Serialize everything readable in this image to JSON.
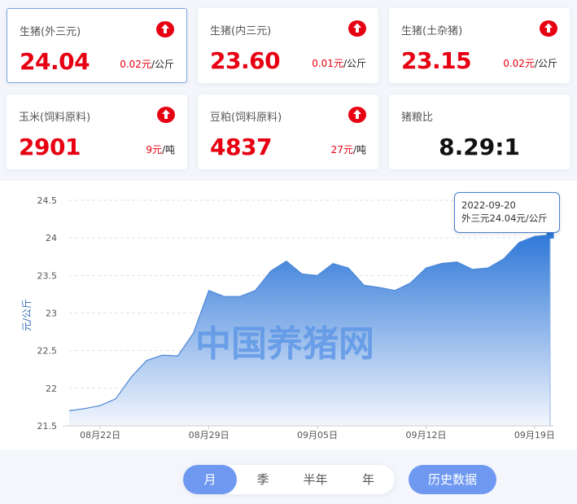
{
  "cards": [
    {
      "name": "生猪(外三元)",
      "price": "24.04",
      "change": "0.02元",
      "unit": "/公斤",
      "trend": "up",
      "active": true
    },
    {
      "name": "生猪(内三元)",
      "price": "23.60",
      "change": "0.01元",
      "unit": "/公斤",
      "trend": "up"
    },
    {
      "name": "生猪(土杂猪)",
      "price": "23.15",
      "change": "0.02元",
      "unit": "/公斤",
      "trend": "up"
    },
    {
      "name": "玉米(饲料原料)",
      "price": "2901",
      "change": "9元",
      "unit": "/吨",
      "trend": "up"
    },
    {
      "name": "豆粕(饲料原料)",
      "price": "4837",
      "change": "27元",
      "unit": "/吨",
      "trend": "up"
    }
  ],
  "ratio_card": {
    "name": "猪粮比",
    "value": "8.29:1"
  },
  "colors": {
    "accent": "#e60012",
    "series": "#3b7fd9",
    "button": "#6f99f1"
  },
  "chart_data": {
    "type": "area",
    "ylabel": "元/公斤",
    "ylim": [
      21.5,
      24.5
    ],
    "yticks": [
      "21.5",
      "22",
      "22.5",
      "23",
      "23.5",
      "24",
      "24.5"
    ],
    "xticks": [
      {
        "date": "2022-08-22",
        "label": "08月22日"
      },
      {
        "date": "2022-08-29",
        "label": "08月29日"
      },
      {
        "date": "2022-09-05",
        "label": "09月05日"
      },
      {
        "date": "2022-09-12",
        "label": "09月12日"
      },
      {
        "date": "2022-09-19",
        "label": "09月19日"
      }
    ],
    "x_start": "2022-08-20",
    "x_end": "2022-09-20",
    "values": [
      21.7,
      21.73,
      21.77,
      21.86,
      22.15,
      22.37,
      22.44,
      22.43,
      22.73,
      23.3,
      23.22,
      23.22,
      23.3,
      23.56,
      23.69,
      23.52,
      23.5,
      23.66,
      23.6,
      23.37,
      23.34,
      23.3,
      23.4,
      23.6,
      23.66,
      23.68,
      23.58,
      23.6,
      23.72,
      23.94,
      24.02,
      24.04
    ],
    "grid": true,
    "watermark": "中国养猪网",
    "tooltip": {
      "date": "2022-09-20",
      "text": "外三元24.04元/公斤"
    }
  },
  "range_options": [
    "月",
    "季",
    "半年",
    "年"
  ],
  "selected_range": "月",
  "history_button": "历史数据"
}
